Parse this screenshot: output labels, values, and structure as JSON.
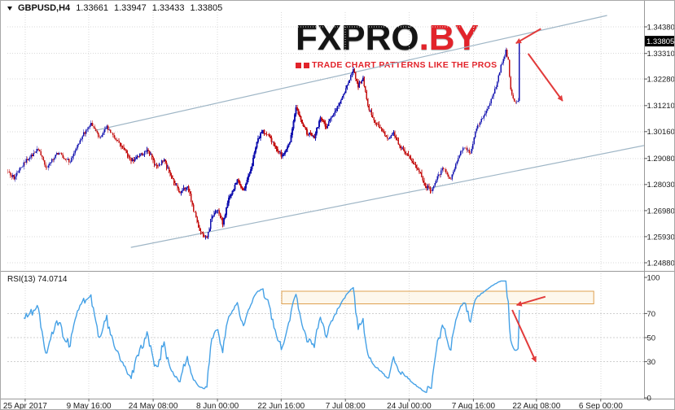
{
  "colors": {
    "background": "#ffffff",
    "grid": "#d9d9d9",
    "candle_up": "#1515b0",
    "candle_down": "#c41212",
    "channel": "#9fb6c6",
    "rsi_line": "#45a1e6",
    "rsi_zone_fill": "#f6e0b5",
    "rsi_zone_border": "#dfa050",
    "arrow": "#e23b3b",
    "axis_text": "#1c1c1c",
    "separator": "#9a9a9a",
    "price_tag_bg": "#000000",
    "price_tag_text": "#ffffff"
  },
  "header": {
    "symbol": "GBPUSD,H4",
    "open": "1.33661",
    "high": "1.33947",
    "low": "1.33433",
    "close": "1.33805"
  },
  "logo": {
    "brand_main": "FXPRO",
    "brand_suffix": ".BY",
    "tagline": "TRADE CHART PATTERNS LIKE THE PROS"
  },
  "rsi_label": "RSI(13) 74.0714",
  "chart_data": {
    "type": "candlestick",
    "title": "GBPUSD,H4",
    "symbol": "GBPUSD",
    "timeframe": "H4",
    "last_price": 1.33805,
    "ohlc_current": {
      "open": 1.33661,
      "high": 1.33947,
      "low": 1.33433,
      "close": 1.33805
    },
    "price_axis_ticks": [
      "1.34380",
      "1.33310",
      "1.32280",
      "1.31210",
      "1.30160",
      "1.29080",
      "1.28030",
      "1.26980",
      "1.25930",
      "1.24880"
    ],
    "time_axis": {
      "labels": [
        "25 Apr 2017",
        "9 May 16:00",
        "24 May 08:00",
        "8 Jun 00:00",
        "22 Jun 16:00",
        "7 Jul 08:00",
        "24 Jul 00:00",
        "7 Aug 16:00",
        "22 Aug 08:00",
        "6 Sep 00:00"
      ],
      "positions": [
        0.028,
        0.128,
        0.229,
        0.33,
        0.43,
        0.531,
        0.631,
        0.732,
        0.831,
        0.932
      ]
    },
    "candles_count": 420,
    "right_shift": 0.805,
    "price_path_anchors": [
      [
        0,
        1.2855
      ],
      [
        5,
        1.283
      ],
      [
        15,
        1.29
      ],
      [
        25,
        1.2945
      ],
      [
        31,
        1.287
      ],
      [
        41,
        1.293
      ],
      [
        51,
        1.2895
      ],
      [
        61,
        1.3
      ],
      [
        68,
        1.3048
      ],
      [
        75,
        1.299
      ],
      [
        81,
        1.3035
      ],
      [
        88,
        1.2985
      ],
      [
        95,
        1.295
      ],
      [
        101,
        1.2895
      ],
      [
        109,
        1.2925
      ],
      [
        115,
        1.294
      ],
      [
        121,
        1.2875
      ],
      [
        128,
        1.29
      ],
      [
        135,
        1.282
      ],
      [
        141,
        1.277
      ],
      [
        147,
        1.28
      ],
      [
        152,
        1.27
      ],
      [
        158,
        1.2605
      ],
      [
        163,
        1.2592
      ],
      [
        167,
        1.267
      ],
      [
        172,
        1.2705
      ],
      [
        176,
        1.264
      ],
      [
        181,
        1.275
      ],
      [
        188,
        1.282
      ],
      [
        193,
        1.278
      ],
      [
        199,
        1.286
      ],
      [
        204,
        1.298
      ],
      [
        209,
        1.302
      ],
      [
        215,
        1.299
      ],
      [
        220,
        1.295
      ],
      [
        225,
        1.2915
      ],
      [
        231,
        1.2975
      ],
      [
        236,
        1.312
      ],
      [
        240,
        1.306
      ],
      [
        245,
        1.301
      ],
      [
        251,
        1.2995
      ],
      [
        256,
        1.307
      ],
      [
        261,
        1.3035
      ],
      [
        267,
        1.309
      ],
      [
        272,
        1.313
      ],
      [
        277,
        1.3185
      ],
      [
        283,
        1.3265
      ],
      [
        287,
        1.32
      ],
      [
        291,
        1.323
      ],
      [
        295,
        1.312
      ],
      [
        300,
        1.306
      ],
      [
        305,
        1.303
      ],
      [
        311,
        1.2985
      ],
      [
        316,
        1.3015
      ],
      [
        321,
        1.296
      ],
      [
        327,
        1.293
      ],
      [
        332,
        1.2895
      ],
      [
        337,
        1.286
      ],
      [
        342,
        1.28
      ],
      [
        347,
        1.2778
      ],
      [
        352,
        1.2835
      ],
      [
        357,
        1.287
      ],
      [
        363,
        1.2825
      ],
      [
        368,
        1.29
      ],
      [
        373,
        1.2955
      ],
      [
        379,
        1.293
      ],
      [
        384,
        1.303
      ],
      [
        389,
        1.307
      ],
      [
        395,
        1.3135
      ],
      [
        400,
        1.32
      ],
      [
        404,
        1.328
      ],
      [
        408,
        1.334
      ],
      [
        410,
        1.33
      ],
      [
        412,
        1.3185
      ],
      [
        415,
        1.3135
      ],
      [
        418,
        1.3145
      ],
      [
        419,
        1.33805
      ]
    ],
    "channel": {
      "upper": [
        [
          0.137,
          1.302
        ],
        [
          0.942,
          1.3484
        ]
      ],
      "lower": [
        [
          0.194,
          1.255
        ],
        [
          1.0,
          1.296
        ]
      ]
    },
    "rsi": {
      "period": 13,
      "current_value": 74.0714,
      "range": [
        0,
        100
      ],
      "levels": [
        100,
        70,
        50,
        30,
        0
      ],
      "zone": {
        "x": [
          0.431,
          0.921
        ],
        "values": [
          78,
          88.5
        ]
      }
    },
    "arrows": {
      "price": [
        {
          "from": [
            0.838,
            1.343
          ],
          "to": [
            0.799,
            1.3372
          ]
        },
        {
          "from": [
            0.818,
            1.333
          ],
          "to": [
            0.872,
            1.314
          ]
        }
      ],
      "rsi": [
        {
          "from": [
            0.845,
            84
          ],
          "to": [
            0.8,
            77
          ]
        },
        {
          "from": [
            0.793,
            73
          ],
          "to": [
            0.83,
            30
          ]
        }
      ]
    }
  }
}
